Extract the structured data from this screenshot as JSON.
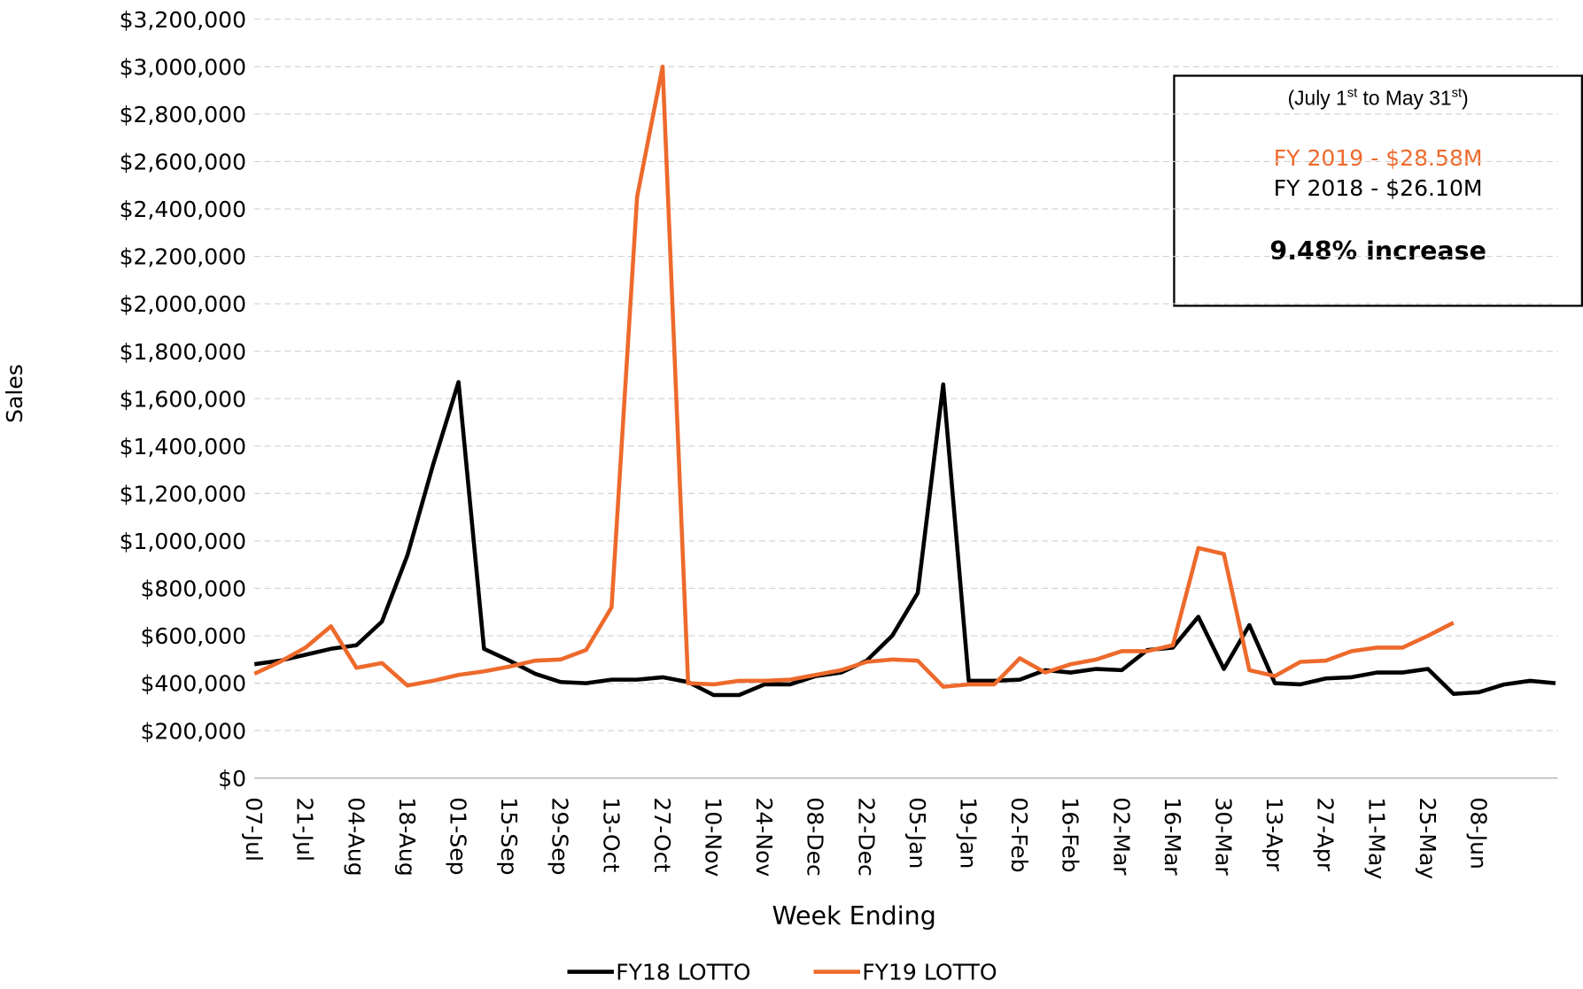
{
  "chart_data": {
    "type": "line",
    "y_label": "Sales",
    "x_label": "Week Ending",
    "categories": [
      "07-Jul",
      null,
      "21-Jul",
      null,
      "04-Aug",
      null,
      "18-Aug",
      null,
      "01-Sep",
      null,
      "15-Sep",
      null,
      "29-Sep",
      null,
      "13-Oct",
      null,
      "27-Oct",
      null,
      "10-Nov",
      null,
      "24-Nov",
      null,
      "08-Dec",
      null,
      "22-Dec",
      null,
      "05-Jan",
      null,
      "19-Jan",
      null,
      "02-Feb",
      null,
      "16-Feb",
      null,
      "02-Mar",
      null,
      "16-Mar",
      null,
      "30-Mar",
      null,
      "13-Apr",
      null,
      "27-Apr",
      null,
      "11-May",
      null,
      "25-May",
      null,
      "08-Jun",
      null,
      null,
      null
    ],
    "series": [
      {
        "name": "FY18 LOTTO",
        "color": "#000000",
        "values": [
          480000,
          495000,
          520000,
          545000,
          560000,
          660000,
          940000,
          1320000,
          1670000,
          545000,
          495000,
          440000,
          405000,
          400000,
          415000,
          415000,
          425000,
          405000,
          350000,
          350000,
          395000,
          395000,
          430000,
          445000,
          495000,
          600000,
          780000,
          1660000,
          410000,
          410000,
          415000,
          455000,
          445000,
          460000,
          455000,
          540000,
          550000,
          680000,
          460000,
          645000,
          400000,
          395000,
          420000,
          425000,
          445000,
          445000,
          460000,
          355000,
          362000,
          395000,
          410000,
          400000
        ]
      },
      {
        "name": "FY19 LOTTO",
        "color": "#ed6a2c",
        "values": [
          440000,
          490000,
          550000,
          640000,
          465000,
          485000,
          390000,
          410000,
          435000,
          450000,
          470000,
          495000,
          500000,
          540000,
          720000,
          2450000,
          3000000,
          400000,
          395000,
          410000,
          410000,
          415000,
          435000,
          455000,
          490000,
          500000,
          495000,
          385000,
          395000,
          395000,
          505000,
          445000,
          480000,
          500000,
          535000,
          535000,
          560000,
          970000,
          945000,
          455000,
          430000,
          490000,
          495000,
          535000,
          550000,
          550000,
          600000,
          655000,
          null,
          null,
          null,
          null
        ]
      }
    ],
    "ylim": [
      0,
      3200000
    ],
    "yticks": [
      {
        "value": 0,
        "label": "$0"
      },
      {
        "value": 200000,
        "label": "$200,000"
      },
      {
        "value": 400000,
        "label": "$400,000"
      },
      {
        "value": 600000,
        "label": "$600,000"
      },
      {
        "value": 800000,
        "label": "$800,000"
      },
      {
        "value": 1000000,
        "label": "$1,000,000"
      },
      {
        "value": 1200000,
        "label": "$1,200,000"
      },
      {
        "value": 1400000,
        "label": "$1,400,000"
      },
      {
        "value": 1600000,
        "label": "$1,600,000"
      },
      {
        "value": 1800000,
        "label": "$1,800,000"
      },
      {
        "value": 2000000,
        "label": "$2,000,000"
      },
      {
        "value": 2200000,
        "label": "$2,200,000"
      },
      {
        "value": 2400000,
        "label": "$2,400,000"
      },
      {
        "value": 2600000,
        "label": "$2,600,000"
      },
      {
        "value": 2800000,
        "label": "$2,800,000"
      },
      {
        "value": 3000000,
        "label": "$3,000,000"
      },
      {
        "value": 3200000,
        "label": "$3,200,000"
      }
    ],
    "grid": true,
    "legend": "bottom",
    "annotation": {
      "period": [
        "(July 1",
        "st",
        " to May 31",
        "st",
        ")"
      ],
      "fy2019": "FY 2019 - $28.58M",
      "fy2018": "FY 2018 - $26.10M",
      "change": "9.48% increase"
    }
  }
}
